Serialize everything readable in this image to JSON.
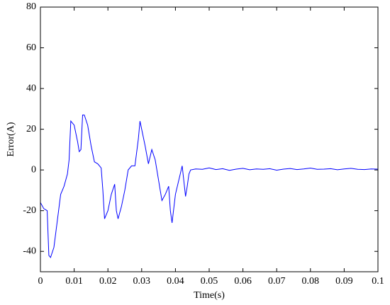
{
  "chart_data": {
    "type": "line",
    "xlabel": "Time(s)",
    "ylabel": "Error(A)",
    "x": [
      0,
      0.001,
      0.002,
      0.0025,
      0.003,
      0.004,
      0.005,
      0.006,
      0.007,
      0.008,
      0.0085,
      0.009,
      0.01,
      0.011,
      0.0115,
      0.012,
      0.0125,
      0.013,
      0.014,
      0.015,
      0.016,
      0.017,
      0.018,
      0.0185,
      0.019,
      0.02,
      0.021,
      0.022,
      0.0225,
      0.023,
      0.024,
      0.025,
      0.026,
      0.027,
      0.028,
      0.029,
      0.0295,
      0.03,
      0.031,
      0.032,
      0.033,
      0.034,
      0.035,
      0.036,
      0.037,
      0.038,
      0.0385,
      0.039,
      0.04,
      0.041,
      0.042,
      0.043,
      0.0435,
      0.044,
      0.0445,
      0.046,
      0.048,
      0.05,
      0.052,
      0.054,
      0.056,
      0.058,
      0.06,
      0.062,
      0.064,
      0.066,
      0.068,
      0.07,
      0.072,
      0.074,
      0.076,
      0.078,
      0.08,
      0.082,
      0.084,
      0.086,
      0.088,
      0.09,
      0.092,
      0.094,
      0.096,
      0.098,
      0.1
    ],
    "series": [
      {
        "color": "#0000ff",
        "values": [
          -16,
          -19,
          -20,
          -42,
          -43,
          -38,
          -25,
          -12,
          -8,
          -2,
          5,
          24,
          22,
          14,
          9,
          10,
          27,
          27,
          22,
          12,
          4,
          3,
          1,
          -10,
          -24,
          -20,
          -12,
          -7,
          -20,
          -24,
          -18,
          -10,
          0,
          2,
          2,
          15,
          24,
          20,
          12,
          3,
          10,
          5,
          -5,
          -15,
          -12,
          -8,
          -20,
          -26,
          -12,
          -5,
          2,
          -13,
          -8,
          -2,
          0,
          0.5,
          0.3,
          1,
          0.2,
          0.6,
          -0.2,
          0.4,
          0.8,
          0.1,
          0.5,
          0.3,
          0.6,
          -0.1,
          0.4,
          0.7,
          0.2,
          0.5,
          0.9,
          0.3,
          0.4,
          0.6,
          0.1,
          0.5,
          0.8,
          0.3,
          0.2,
          0.5,
          0.4
        ]
      }
    ],
    "xlim": [
      0,
      0.1
    ],
    "xticks": [
      0,
      0.01,
      0.02,
      0.03,
      0.04,
      0.05,
      0.06,
      0.07,
      0.08,
      0.09,
      0.1
    ],
    "ylim": [
      -50,
      80
    ],
    "yticks": [
      -40,
      -20,
      0,
      20,
      40,
      60,
      80
    ],
    "grid": false
  }
}
